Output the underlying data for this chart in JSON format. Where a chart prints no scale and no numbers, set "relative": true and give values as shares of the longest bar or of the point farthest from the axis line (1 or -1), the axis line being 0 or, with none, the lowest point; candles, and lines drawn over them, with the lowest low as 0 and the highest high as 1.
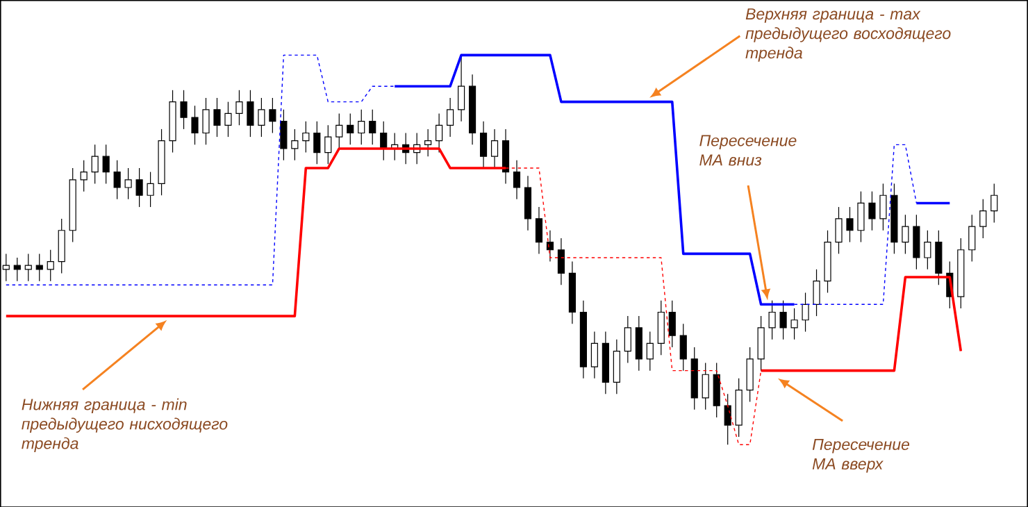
{
  "chart_data": [
    {
      "type": "candlestick",
      "relative": true,
      "tick_labels": false,
      "categories": [
        null,
        null,
        null,
        null,
        null,
        null,
        null,
        null,
        null,
        null,
        null,
        null,
        null,
        null,
        null,
        null,
        null,
        null,
        null,
        null,
        null,
        null,
        null,
        null,
        null,
        null,
        null,
        null,
        null,
        null,
        null,
        null,
        null,
        null,
        null,
        null,
        null,
        null,
        null,
        null,
        null,
        null,
        null,
        null,
        null,
        null,
        null,
        null,
        null,
        null,
        null,
        null,
        null,
        null,
        null,
        null,
        null,
        null,
        null,
        null,
        null,
        null,
        null,
        null,
        null,
        null,
        null,
        null,
        null,
        null,
        null,
        null,
        null,
        null,
        null,
        null,
        null,
        null,
        null,
        null,
        null,
        null,
        null,
        null,
        null,
        null,
        null,
        null,
        null,
        null
      ],
      "ohlc": [
        [
          0.45,
          0.49,
          0.42,
          0.46
        ],
        [
          0.46,
          0.48,
          0.42,
          0.45
        ],
        [
          0.45,
          0.49,
          0.42,
          0.46
        ],
        [
          0.46,
          0.49,
          0.42,
          0.45
        ],
        [
          0.45,
          0.5,
          0.42,
          0.47
        ],
        [
          0.47,
          0.58,
          0.44,
          0.55
        ],
        [
          0.55,
          0.71,
          0.52,
          0.68
        ],
        [
          0.68,
          0.73,
          0.65,
          0.7
        ],
        [
          0.7,
          0.77,
          0.67,
          0.74
        ],
        [
          0.74,
          0.77,
          0.67,
          0.7
        ],
        [
          0.7,
          0.73,
          0.63,
          0.66
        ],
        [
          0.66,
          0.71,
          0.63,
          0.68
        ],
        [
          0.68,
          0.71,
          0.61,
          0.64
        ],
        [
          0.64,
          0.7,
          0.61,
          0.67
        ],
        [
          0.67,
          0.81,
          0.64,
          0.78
        ],
        [
          0.78,
          0.91,
          0.75,
          0.88
        ],
        [
          0.88,
          0.91,
          0.81,
          0.84
        ],
        [
          0.84,
          0.87,
          0.77,
          0.8
        ],
        [
          0.8,
          0.89,
          0.77,
          0.86
        ],
        [
          0.86,
          0.89,
          0.79,
          0.82
        ],
        [
          0.82,
          0.88,
          0.79,
          0.85
        ],
        [
          0.85,
          0.91,
          0.82,
          0.88
        ],
        [
          0.88,
          0.91,
          0.79,
          0.82
        ],
        [
          0.82,
          0.89,
          0.79,
          0.86
        ],
        [
          0.86,
          0.89,
          0.8,
          0.83
        ],
        [
          0.83,
          0.86,
          0.73,
          0.76
        ],
        [
          0.76,
          0.81,
          0.73,
          0.78
        ],
        [
          0.78,
          0.83,
          0.75,
          0.8
        ],
        [
          0.8,
          0.83,
          0.72,
          0.75
        ],
        [
          0.75,
          0.82,
          0.72,
          0.79
        ],
        [
          0.79,
          0.85,
          0.76,
          0.82
        ],
        [
          0.82,
          0.85,
          0.77,
          0.8
        ],
        [
          0.8,
          0.86,
          0.77,
          0.83
        ],
        [
          0.83,
          0.86,
          0.77,
          0.8
        ],
        [
          0.8,
          0.83,
          0.73,
          0.76
        ],
        [
          0.76,
          0.8,
          0.73,
          0.77
        ],
        [
          0.77,
          0.8,
          0.72,
          0.75
        ],
        [
          0.75,
          0.8,
          0.72,
          0.77
        ],
        [
          0.77,
          0.81,
          0.74,
          0.78
        ],
        [
          0.78,
          0.85,
          0.75,
          0.82
        ],
        [
          0.82,
          0.89,
          0.79,
          0.86
        ],
        [
          0.86,
          1.0,
          0.83,
          0.92
        ],
        [
          0.92,
          0.95,
          0.77,
          0.8
        ],
        [
          0.8,
          0.83,
          0.71,
          0.74
        ],
        [
          0.74,
          0.81,
          0.71,
          0.78
        ],
        [
          0.78,
          0.81,
          0.67,
          0.7
        ],
        [
          0.7,
          0.73,
          0.63,
          0.66
        ],
        [
          0.66,
          0.69,
          0.55,
          0.58
        ],
        [
          0.58,
          0.61,
          0.49,
          0.52
        ],
        [
          0.52,
          0.55,
          0.47,
          0.5
        ],
        [
          0.5,
          0.53,
          0.41,
          0.44
        ],
        [
          0.44,
          0.47,
          0.31,
          0.34
        ],
        [
          0.34,
          0.37,
          0.17,
          0.2
        ],
        [
          0.2,
          0.29,
          0.17,
          0.26
        ],
        [
          0.26,
          0.29,
          0.13,
          0.16
        ],
        [
          0.16,
          0.27,
          0.13,
          0.24
        ],
        [
          0.24,
          0.33,
          0.21,
          0.3
        ],
        [
          0.3,
          0.33,
          0.19,
          0.22
        ],
        [
          0.22,
          0.29,
          0.19,
          0.26
        ],
        [
          0.26,
          0.37,
          0.23,
          0.34
        ],
        [
          0.34,
          0.37,
          0.25,
          0.28
        ],
        [
          0.28,
          0.31,
          0.19,
          0.22
        ],
        [
          0.22,
          0.25,
          0.09,
          0.12
        ],
        [
          0.12,
          0.21,
          0.09,
          0.18
        ],
        [
          0.18,
          0.21,
          0.07,
          0.1
        ],
        [
          0.1,
          0.13,
          0.0,
          0.05
        ],
        [
          0.05,
          0.17,
          0.02,
          0.14
        ],
        [
          0.14,
          0.25,
          0.11,
          0.22
        ],
        [
          0.22,
          0.33,
          0.19,
          0.3
        ],
        [
          0.3,
          0.37,
          0.27,
          0.34
        ],
        [
          0.34,
          0.37,
          0.27,
          0.3
        ],
        [
          0.3,
          0.35,
          0.27,
          0.32
        ],
        [
          0.32,
          0.39,
          0.29,
          0.36
        ],
        [
          0.36,
          0.45,
          0.33,
          0.42
        ],
        [
          0.42,
          0.55,
          0.39,
          0.52
        ],
        [
          0.52,
          0.61,
          0.49,
          0.58
        ],
        [
          0.58,
          0.61,
          0.52,
          0.55
        ],
        [
          0.55,
          0.65,
          0.52,
          0.62
        ],
        [
          0.62,
          0.65,
          0.55,
          0.58
        ],
        [
          0.58,
          0.67,
          0.55,
          0.64
        ],
        [
          0.64,
          0.67,
          0.49,
          0.52
        ],
        [
          0.52,
          0.59,
          0.49,
          0.56
        ],
        [
          0.56,
          0.59,
          0.45,
          0.48
        ],
        [
          0.48,
          0.55,
          0.45,
          0.52
        ],
        [
          0.52,
          0.55,
          0.41,
          0.44
        ],
        [
          0.44,
          0.47,
          0.35,
          0.38
        ],
        [
          0.38,
          0.53,
          0.35,
          0.5
        ],
        [
          0.5,
          0.59,
          0.47,
          0.56
        ],
        [
          0.56,
          0.63,
          0.53,
          0.6
        ],
        [
          0.6,
          0.67,
          0.57,
          0.64
        ]
      ],
      "annotations": [
        "Верхняя граница - max предыдущего восходящего тренда",
        "Пересечение МА вниз",
        "Нижняя граница - min предыдущего нисходящего тренда",
        "Пересечение МА вверх"
      ]
    },
    {
      "type": "line",
      "relative": true,
      "tick_labels": false,
      "categories": [
        null,
        null,
        null,
        null,
        null,
        null,
        null,
        null,
        null,
        null,
        null,
        null,
        null,
        null,
        null,
        null,
        null,
        null,
        null,
        null,
        null,
        null,
        null,
        null,
        null,
        null,
        null,
        null,
        null,
        null,
        null,
        null,
        null,
        null,
        null,
        null,
        null,
        null,
        null,
        null,
        null,
        null,
        null,
        null,
        null,
        null,
        null,
        null,
        null,
        null,
        null,
        null,
        null,
        null,
        null,
        null,
        null,
        null,
        null,
        null,
        null,
        null,
        null,
        null,
        null,
        null,
        null,
        null,
        null,
        null,
        null,
        null,
        null,
        null,
        null,
        null,
        null,
        null,
        null,
        null,
        null,
        null,
        null,
        null,
        null,
        null,
        null,
        null,
        null,
        null
      ],
      "series": [
        {
          "color": "#0000ff",
          "line_style": "dashed",
          "values": [
            0.41,
            0.41,
            0.41,
            0.41,
            0.41,
            0.41,
            0.41,
            0.41,
            0.41,
            0.41,
            0.41,
            0.41,
            0.41,
            0.41,
            0.41,
            0.41,
            0.41,
            0.41,
            0.41,
            0.41,
            0.41,
            0.41,
            0.41,
            0.41,
            0.41,
            1.0,
            1.0,
            1.0,
            1.0,
            0.88,
            0.88,
            0.88,
            0.88,
            0.92,
            0.92,
            0.92,
            null,
            null,
            null,
            null,
            null,
            null,
            null,
            null,
            null,
            null,
            null,
            null,
            null,
            null,
            null,
            null,
            null,
            null,
            null,
            null,
            null,
            null,
            null,
            null,
            null,
            null,
            null,
            null,
            null,
            null,
            null,
            null,
            null,
            null,
            null,
            null,
            null,
            null,
            null,
            null,
            null,
            null,
            null,
            null,
            null,
            null,
            null,
            null,
            null,
            null,
            null,
            null,
            null,
            null
          ]
        },
        {
          "color": "#0000ff",
          "line_style": "solid",
          "values": [
            null,
            null,
            null,
            null,
            null,
            null,
            null,
            null,
            null,
            null,
            null,
            null,
            null,
            null,
            null,
            null,
            null,
            null,
            null,
            null,
            null,
            null,
            null,
            null,
            null,
            null,
            null,
            null,
            null,
            null,
            null,
            null,
            null,
            null,
            null,
            0.92,
            0.92,
            0.92,
            0.92,
            0.92,
            0.92,
            1.0,
            1.0,
            1.0,
            1.0,
            1.0,
            1.0,
            1.0,
            1.0,
            1.0,
            0.88,
            0.88,
            0.88,
            0.88,
            0.88,
            0.88,
            0.88,
            0.88,
            0.88,
            0.88,
            0.88,
            0.49,
            0.49,
            0.49,
            0.49,
            0.49,
            0.49,
            0.49,
            0.36,
            0.36,
            0.36,
            0.36,
            null,
            null,
            null,
            null,
            null,
            null,
            null,
            null,
            null,
            null,
            null,
            null,
            null,
            null,
            null,
            null,
            null,
            null
          ]
        },
        {
          "color": "#0000ff",
          "line_style": "dashed",
          "values": [
            null,
            null,
            null,
            null,
            null,
            null,
            null,
            null,
            null,
            null,
            null,
            null,
            null,
            null,
            null,
            null,
            null,
            null,
            null,
            null,
            null,
            null,
            null,
            null,
            null,
            null,
            null,
            null,
            null,
            null,
            null,
            null,
            null,
            null,
            null,
            null,
            null,
            null,
            null,
            null,
            null,
            null,
            null,
            null,
            null,
            null,
            null,
            null,
            null,
            null,
            null,
            null,
            null,
            null,
            null,
            null,
            null,
            null,
            null,
            null,
            null,
            null,
            null,
            null,
            null,
            null,
            null,
            null,
            null,
            null,
            null,
            0.36,
            0.36,
            0.36,
            0.36,
            0.36,
            0.36,
            0.36,
            0.36,
            0.36,
            0.77,
            0.77,
            0.62,
            null,
            null,
            null,
            null,
            null,
            null,
            null
          ]
        },
        {
          "color": "#0000ff",
          "line_style": "solid",
          "values": [
            null,
            null,
            null,
            null,
            null,
            null,
            null,
            null,
            null,
            null,
            null,
            null,
            null,
            null,
            null,
            null,
            null,
            null,
            null,
            null,
            null,
            null,
            null,
            null,
            null,
            null,
            null,
            null,
            null,
            null,
            null,
            null,
            null,
            null,
            null,
            null,
            null,
            null,
            null,
            null,
            null,
            null,
            null,
            null,
            null,
            null,
            null,
            null,
            null,
            null,
            null,
            null,
            null,
            null,
            null,
            null,
            null,
            null,
            null,
            null,
            null,
            null,
            null,
            null,
            null,
            null,
            null,
            null,
            null,
            null,
            null,
            null,
            null,
            null,
            null,
            null,
            null,
            null,
            null,
            null,
            null,
            null,
            0.62,
            0.62,
            0.62,
            0.62,
            null,
            null,
            null,
            null
          ]
        },
        {
          "color": "#ff0000",
          "line_style": "solid",
          "values": [
            0.33,
            0.33,
            0.33,
            0.33,
            0.33,
            0.33,
            0.33,
            0.33,
            0.33,
            0.33,
            0.33,
            0.33,
            0.33,
            0.33,
            0.33,
            0.33,
            0.33,
            0.33,
            0.33,
            0.33,
            0.33,
            0.33,
            0.33,
            0.33,
            0.33,
            0.33,
            0.33,
            0.71,
            0.71,
            0.71,
            0.76,
            0.76,
            0.76,
            0.76,
            0.76,
            0.76,
            0.76,
            0.76,
            0.76,
            0.76,
            0.71,
            0.71,
            0.71,
            0.71,
            0.71,
            0.71,
            null,
            null,
            null,
            null,
            null,
            null,
            null,
            null,
            null,
            null,
            null,
            null,
            null,
            null,
            null,
            null,
            null,
            null,
            null,
            null,
            null,
            null,
            null,
            null,
            null,
            null,
            null,
            null,
            null,
            null,
            null,
            null,
            null,
            null,
            null,
            null,
            null,
            null,
            null,
            null,
            null,
            null,
            null,
            null
          ]
        },
        {
          "color": "#ff0000",
          "line_style": "solid",
          "values": [
            null,
            null,
            null,
            null,
            null,
            null,
            null,
            null,
            null,
            null,
            null,
            null,
            null,
            null,
            null,
            null,
            null,
            null,
            null,
            null,
            null,
            null,
            null,
            null,
            null,
            null,
            null,
            null,
            null,
            null,
            null,
            null,
            null,
            null,
            null,
            null,
            null,
            null,
            null,
            null,
            null,
            null,
            null,
            null,
            null,
            null,
            null,
            null,
            null,
            null,
            null,
            null,
            null,
            null,
            null,
            null,
            null,
            null,
            null,
            null,
            null,
            null,
            null,
            null,
            null,
            null,
            null,
            null,
            0.19,
            0.19,
            0.19,
            0.19,
            0.19,
            0.19,
            0.19,
            0.19,
            0.19,
            0.19,
            0.19,
            0.19,
            0.19,
            0.43,
            0.43,
            0.43,
            0.43,
            0.43,
            0.24,
            null,
            null,
            null
          ]
        },
        {
          "color": "#ff0000",
          "line_style": "dashed",
          "values": [
            null,
            null,
            null,
            null,
            null,
            null,
            null,
            null,
            null,
            null,
            null,
            null,
            null,
            null,
            null,
            null,
            null,
            null,
            null,
            null,
            null,
            null,
            null,
            null,
            null,
            null,
            null,
            null,
            null,
            null,
            null,
            null,
            null,
            null,
            null,
            null,
            null,
            null,
            null,
            null,
            null,
            null,
            null,
            null,
            null,
            0.71,
            0.71,
            0.71,
            0.71,
            0.48,
            0.48,
            0.48,
            0.48,
            0.48,
            0.48,
            0.48,
            0.48,
            0.48,
            0.48,
            0.48,
            0.19,
            0.19,
            0.19,
            0.19,
            0.19,
            0.1,
            0.0,
            0.0,
            0.19,
            null,
            null,
            null,
            null,
            null,
            null,
            null,
            null,
            null,
            null,
            null,
            null,
            null,
            null,
            null,
            null,
            null,
            null,
            null,
            null,
            null
          ]
        }
      ]
    }
  ]
}
